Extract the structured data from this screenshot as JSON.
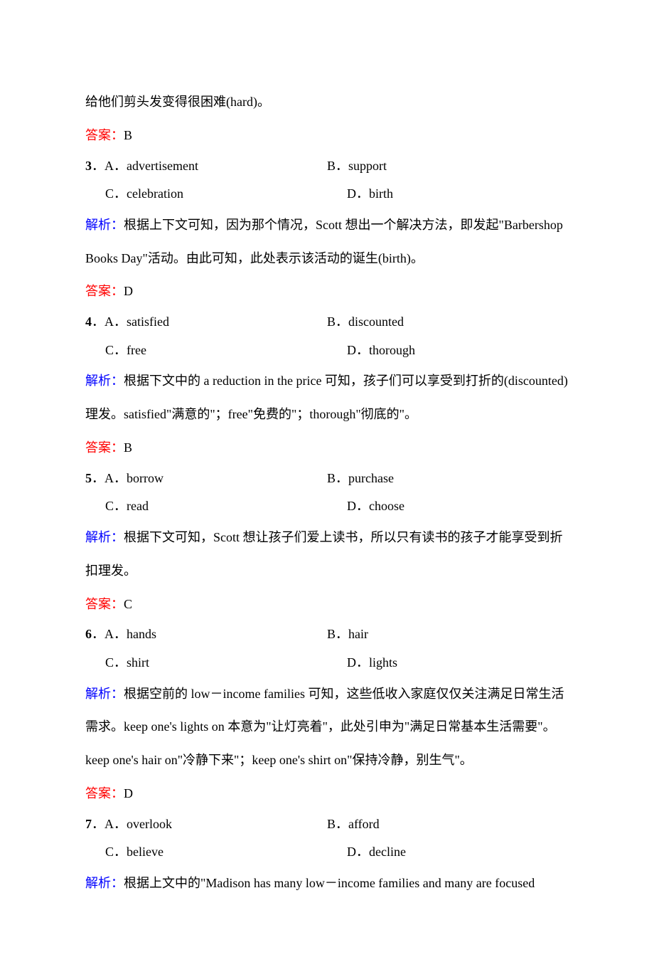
{
  "colors": {
    "text": "#000000",
    "explain": "#0000ff",
    "answer": "#ff0000",
    "background": "#ffffff"
  },
  "typography": {
    "font_family": "SimSun",
    "font_size_pt": 14,
    "line_height": 2.6
  },
  "intro_line": "给他们剪头发变得很困难(hard)。",
  "labels": {
    "explain": "解析：",
    "answer": "答案："
  },
  "answer_intro": "B",
  "questions": [
    {
      "num": "3",
      "options_row1": {
        "a": "A．advertisement",
        "b": "B．support"
      },
      "options_row2": {
        "c": "C．celebration",
        "d": "D．birth"
      },
      "explain": "根据上下文可知，因为那个情况，Scott 想出一个解决方法，即发起\"Barbershop Books Day\"活动。由此可知，此处表示该活动的诞生(birth)。",
      "answer": "D"
    },
    {
      "num": "4",
      "options_row1": {
        "a": "A．satisfied",
        "b": "B．discounted"
      },
      "options_row2": {
        "c": "C．free",
        "d": "D．thorough"
      },
      "explain": "根据下文中的 a reduction in the price 可知，孩子们可以享受到打折的(discounted)理发。satisfied\"满意的\"；free\"免费的\"；thorough\"彻底的\"。",
      "answer": "B"
    },
    {
      "num": "5",
      "options_row1": {
        "a": "A．borrow",
        "b": "B．purchase"
      },
      "options_row2": {
        "c": "C．read",
        "d": "D．choose"
      },
      "explain": "根据下文可知，Scott 想让孩子们爱上读书，所以只有读书的孩子才能享受到折扣理发。",
      "answer": "C"
    },
    {
      "num": "6",
      "options_row1": {
        "a": "A．hands",
        "b": "B．hair"
      },
      "options_row2": {
        "c": "C．shirt",
        "d": "D．lights"
      },
      "explain": "根据空前的 low－income families 可知，这些低收入家庭仅仅关注满足日常生活需求。keep one's lights on 本意为\"让灯亮着\"，此处引申为\"满足日常基本生活需要\"。keep one's hair on\"冷静下来\"；keep one's shirt on\"保持冷静，别生气\"。",
      "answer": "D"
    },
    {
      "num": "7",
      "options_row1": {
        "a": "A．overlook",
        "b": "B．afford"
      },
      "options_row2": {
        "c": "C．believe",
        "d": "D．decline"
      },
      "explain": "根据上文中的\"Madison has many low－income families and many are focused",
      "answer": ""
    }
  ]
}
